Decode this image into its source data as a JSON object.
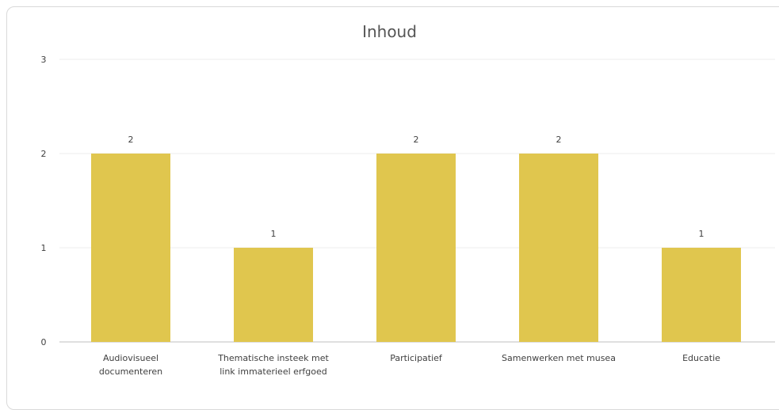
{
  "chart_data": {
    "type": "bar",
    "title": "Inhoud",
    "categories": [
      [
        "Audiovisueel",
        "documenteren"
      ],
      [
        "Thematische insteek met",
        "link immaterieel erfgoed"
      ],
      [
        "Participatief"
      ],
      [
        "Samenwerken met musea"
      ],
      [
        "Educatie"
      ]
    ],
    "values": [
      2,
      1,
      2,
      2,
      1
    ],
    "data_labels": [
      "2",
      "1",
      "2",
      "2",
      "1"
    ],
    "yticks": [
      "0",
      "1",
      "2",
      "3"
    ],
    "ylim": [
      0,
      3
    ],
    "grid": true,
    "legend": "none",
    "bar_color": "#e0c64e",
    "xlabel": "",
    "ylabel": ""
  }
}
